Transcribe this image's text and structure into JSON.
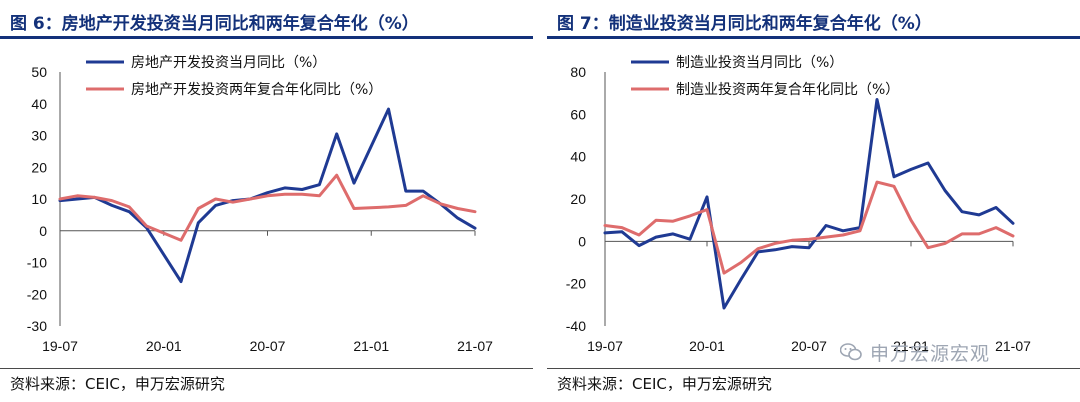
{
  "charts": [
    {
      "title": "图 6：房地产开发投资当月同比和两年复合年化（%）",
      "source": "资料来源：CEIC，申万宏源研究",
      "chart_data": {
        "type": "line",
        "ylim": [
          -30,
          50
        ],
        "yticks": [
          50,
          40,
          30,
          20,
          10,
          0,
          -10,
          -20,
          -30
        ],
        "xticks": [
          "19-07",
          "20-01",
          "20-07",
          "21-01",
          "21-07"
        ],
        "x": [
          "19-07",
          "19-08",
          "19-09",
          "19-10",
          "19-11",
          "19-12",
          "20-01",
          "20-02",
          "20-03",
          "20-04",
          "20-05",
          "20-06",
          "20-07",
          "20-08",
          "20-09",
          "20-10",
          "20-11",
          "20-12",
          "21-01",
          "21-02",
          "21-03",
          "21-04",
          "21-05",
          "21-06",
          "21-07"
        ],
        "series": [
          {
            "name": "房地产开发投资当月同比（%）",
            "color": "#1f3a93",
            "values": [
              9.5,
              10.0,
              10.5,
              8.0,
              6.0,
              1.0,
              null,
              -16.0,
              2.5,
              8.0,
              9.5,
              10.0,
              12.0,
              13.5,
              13.0,
              14.5,
              30.5,
              15.0,
              null,
              38.3,
              12.5,
              12.5,
              8.5,
              4.0,
              0.8
            ]
          },
          {
            "name": "房地产开发投资两年复合年化同比（%）",
            "color": "#de6c6c",
            "values": [
              10.0,
              11.0,
              10.5,
              9.5,
              7.5,
              1.5,
              null,
              -3.0,
              7.0,
              10.0,
              9.0,
              10.0,
              11.0,
              11.5,
              11.5,
              11.0,
              17.5,
              7.0,
              null,
              7.5,
              8.0,
              11.0,
              8.5,
              7.0,
              6.0
            ]
          }
        ]
      }
    },
    {
      "title": "图 7：制造业投资当月同比和两年复合年化（%）",
      "source": "资料来源：CEIC，申万宏源研究",
      "chart_data": {
        "type": "line",
        "ylim": [
          -40,
          80
        ],
        "yticks": [
          80,
          60,
          40,
          20,
          0,
          -20,
          -40
        ],
        "xticks": [
          "19-07",
          "20-01",
          "20-07",
          "21-01",
          "21-07"
        ],
        "x": [
          "19-07",
          "19-08",
          "19-09",
          "19-10",
          "19-11",
          "19-12",
          "20-01",
          "20-02",
          "20-03",
          "20-04",
          "20-05",
          "20-06",
          "20-07",
          "20-08",
          "20-09",
          "20-10",
          "20-11",
          "20-12",
          "21-01",
          "21-02",
          "21-03",
          "21-04",
          "21-05",
          "21-06",
          "21-07"
        ],
        "series": [
          {
            "name": "制造业投资当月同比（%）",
            "color": "#1f3a93",
            "values": [
              4.0,
              4.5,
              -2.0,
              2.0,
              3.5,
              1.0,
              21.0,
              -31.5,
              -18.0,
              -5.0,
              -4.0,
              -2.5,
              -3.0,
              7.5,
              5.0,
              6.5,
              67.0,
              30.5,
              34.0,
              37.0,
              24.0,
              14.0,
              12.5,
              16.0,
              8.5
            ]
          },
          {
            "name": "制造业投资两年复合年化同比（%）",
            "color": "#de6c6c",
            "values": [
              7.5,
              6.5,
              3.0,
              10.0,
              9.5,
              12.0,
              15.0,
              -15.0,
              -10.0,
              -3.5,
              -1.0,
              0.5,
              1.0,
              2.0,
              3.0,
              5.0,
              28.0,
              26.0,
              10.0,
              -3.0,
              -1.0,
              3.5,
              3.5,
              6.5,
              2.5
            ]
          }
        ]
      }
    }
  ],
  "watermark": "申万宏源宏观"
}
